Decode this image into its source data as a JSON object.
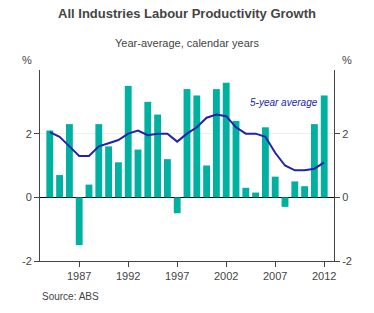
{
  "chart_data": {
    "type": "bar",
    "title": "All Industries Labour Productivity Growth",
    "subtitle": "Year-average, calendar years",
    "source": "Source: ABS",
    "ylabel": "%",
    "y2label": "%",
    "x": [
      1984,
      1985,
      1986,
      1987,
      1988,
      1989,
      1990,
      1991,
      1992,
      1993,
      1994,
      1995,
      1996,
      1997,
      1998,
      1999,
      2000,
      2001,
      2002,
      2003,
      2004,
      2005,
      2006,
      2007,
      2008,
      2009,
      2010,
      2011,
      2012
    ],
    "series": [
      {
        "type": "bar",
        "color": "#00B0A0",
        "values": [
          2.1,
          0.7,
          2.3,
          -1.5,
          0.4,
          2.3,
          1.6,
          1.1,
          3.5,
          1.5,
          3.0,
          2.6,
          1.2,
          -0.5,
          3.4,
          3.2,
          1.0,
          3.4,
          3.6,
          2.4,
          0.3,
          0.15,
          2.2,
          0.65,
          -0.3,
          0.5,
          0.35,
          2.3,
          3.2
        ]
      },
      {
        "type": "line",
        "color": "#2222AA",
        "values": [
          2.05,
          1.9,
          1.6,
          1.3,
          1.3,
          1.6,
          1.7,
          1.8,
          2.0,
          2.1,
          1.95,
          2.0,
          2.0,
          1.75,
          2.0,
          2.2,
          2.5,
          2.6,
          2.55,
          2.2,
          2.0,
          2.0,
          1.9,
          1.4,
          1.0,
          0.85,
          0.85,
          0.9,
          1.1
        ]
      }
    ],
    "annotation": {
      "text": "5-year average",
      "x": 2004.2,
      "y": 2.75
    },
    "xlim": [
      1983,
      2013
    ],
    "xticks": [
      1987,
      1992,
      1997,
      2002,
      2007,
      2012
    ],
    "ylim": [
      -2,
      4
    ],
    "yticks": [
      -2,
      0,
      2
    ],
    "y2lim": [
      -2,
      4
    ],
    "y2ticks": [
      -2,
      0,
      2
    ],
    "grid": true
  }
}
